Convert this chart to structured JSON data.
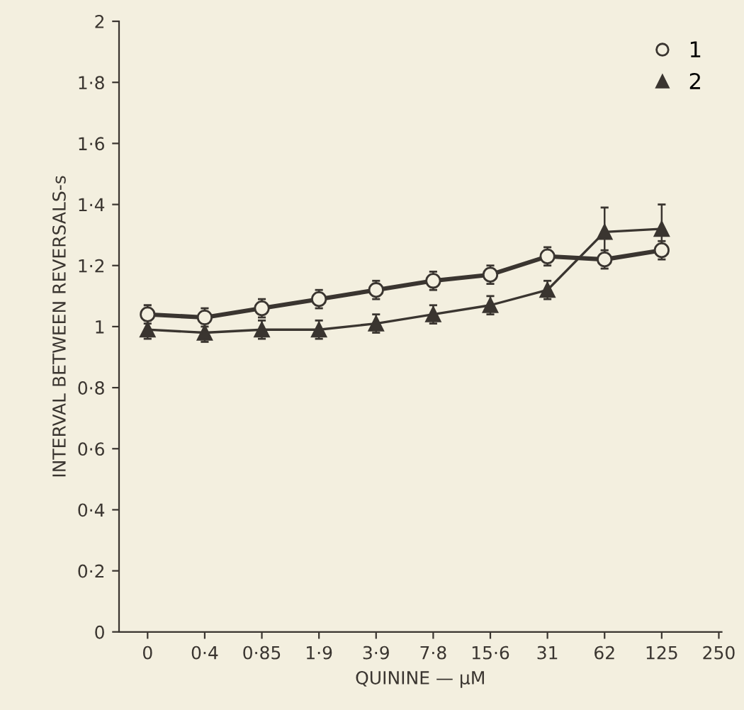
{
  "chart_data": {
    "type": "line",
    "xlabel": "QUININE — μM",
    "ylabel": "INTERVAL BETWEEN REVERSALS-s",
    "categories": [
      "0",
      "0·4",
      "0·85",
      "1·9",
      "3·9",
      "7·8",
      "15·6",
      "31",
      "62",
      "125",
      "250"
    ],
    "series": [
      {
        "name": "1",
        "color": "#3a3530",
        "marker": "circle",
        "values": [
          1.04,
          1.03,
          1.06,
          1.09,
          1.12,
          1.15,
          1.17,
          1.23,
          1.22,
          1.25,
          null
        ],
        "errors": [
          0.03,
          0.03,
          0.03,
          0.03,
          0.03,
          0.03,
          0.03,
          0.03,
          0.03,
          0.03,
          null
        ]
      },
      {
        "name": "2",
        "color": "#3a3530",
        "marker": "triangle",
        "values": [
          0.99,
          0.98,
          0.99,
          0.99,
          1.01,
          1.04,
          1.07,
          1.12,
          1.31,
          1.32,
          null
        ],
        "errors": [
          0.03,
          0.03,
          0.03,
          0.03,
          0.03,
          0.03,
          0.03,
          0.03,
          0.08,
          0.08,
          null
        ]
      }
    ],
    "ylim": [
      0,
      2
    ],
    "yticks": [
      0,
      {
        "value": 0.2,
        "label": "0·2"
      },
      {
        "value": 0.4,
        "label": "0·4"
      },
      {
        "value": 0.6,
        "label": "0·6"
      },
      {
        "value": 0.8,
        "label": "0·8"
      },
      1,
      {
        "value": 1.2,
        "label": "1·2"
      },
      {
        "value": 1.4,
        "label": "1·4"
      },
      {
        "value": 1.6,
        "label": "1·6"
      },
      {
        "value": 1.8,
        "label": "1·8"
      },
      2
    ],
    "grid": false,
    "legend": "top right",
    "line_style": "solid"
  }
}
